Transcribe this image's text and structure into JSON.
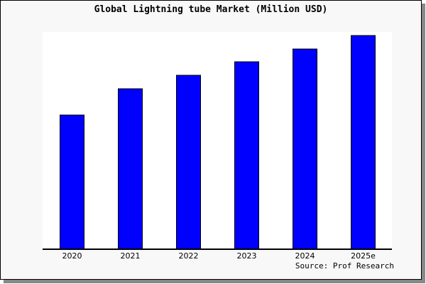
{
  "chart_data": {
    "type": "bar",
    "title": "Global Lightning tube Market (Million USD)",
    "categories": [
      "2020",
      "2021",
      "2022",
      "2023",
      "2024",
      "2025e"
    ],
    "values": [
      189,
      226,
      245,
      264,
      282,
      301
    ],
    "ylim": [
      0,
      306
    ],
    "xlabel": "",
    "ylabel": "",
    "grid": false,
    "bar_color": "#0000ff",
    "source": "Source: Prof Research"
  }
}
